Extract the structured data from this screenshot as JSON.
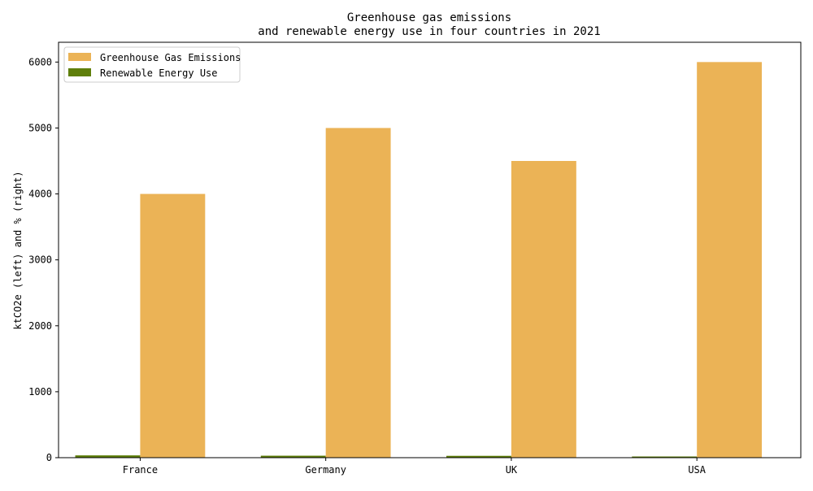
{
  "chart_data": {
    "type": "bar",
    "title_line1": "Greenhouse gas emissions",
    "title_line2": "and renewable energy use in four countries in 2021",
    "xlabel": "",
    "ylabel": "ktCO2e (left) and % (right)",
    "categories": [
      "France",
      "Germany",
      "UK",
      "USA"
    ],
    "series": [
      {
        "name": "Renewable Energy Use",
        "color": "#5f7f0b",
        "values": [
          35,
          30,
          28,
          18
        ]
      },
      {
        "name": "Greenhouse Gas Emissions",
        "color": "#ebb356",
        "values": [
          4000,
          5000,
          4500,
          6000
        ]
      }
    ],
    "legend_order": [
      "Greenhouse Gas Emissions",
      "Renewable Energy Use"
    ],
    "legend_position": "top-left",
    "ylim": [
      0,
      6300
    ],
    "yticks": [
      0,
      1000,
      2000,
      3000,
      4000,
      5000,
      6000
    ],
    "grid": false
  }
}
